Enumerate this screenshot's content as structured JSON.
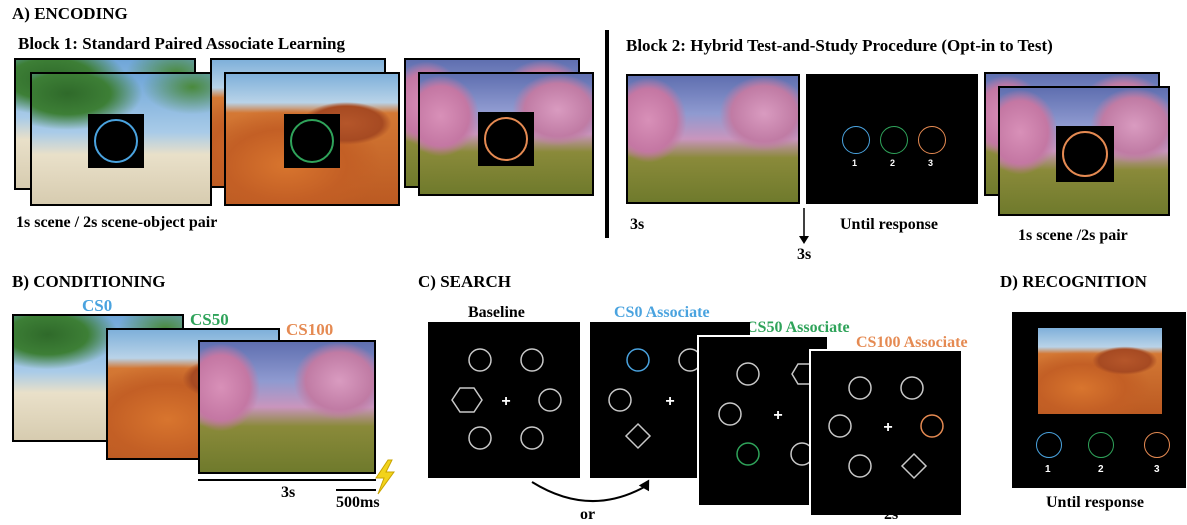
{
  "colors": {
    "cs0": "#4aa3df",
    "cs50": "#2fa35a",
    "cs100": "#e58a52",
    "gray": "#c8c8c8"
  },
  "encoding": {
    "heading": "A) ENCODING",
    "block1_title": "Block 1: Standard Paired Associate Learning",
    "block1_caption": "1s scene / 2s scene-object pair",
    "block2_title": "Block 2: Hybrid Test-and-Study Procedure (Opt-in to Test)",
    "label_3s": "3s",
    "label_until": "Until response",
    "label_3s_arrow": "3s",
    "label_pair": "1s scene /2s pair",
    "option_numbers": [
      "1",
      "2",
      "3"
    ]
  },
  "conditioning": {
    "heading": "B) CONDITIONING",
    "cs0": "CS0",
    "cs50": "CS50",
    "cs100": "CS100",
    "duration": "3s",
    "shock": "500ms"
  },
  "search": {
    "heading": "C) SEARCH",
    "baseline": "Baseline",
    "cs0_assoc": "CS0 Associate",
    "cs50_assoc": "CS50 Associate",
    "cs100_assoc": "CS100 Associate",
    "or": "or",
    "duration": "2s",
    "fixation": "+"
  },
  "recognition": {
    "heading": "D) RECOGNITION",
    "numbers": [
      "1",
      "2",
      "3"
    ],
    "caption": "Until response"
  }
}
